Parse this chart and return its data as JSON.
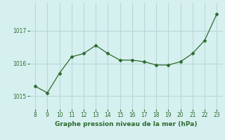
{
  "x": [
    8,
    9,
    10,
    11,
    12,
    13,
    14,
    15,
    16,
    17,
    18,
    19,
    20,
    21,
    22,
    23
  ],
  "y": [
    1015.3,
    1015.1,
    1015.7,
    1016.2,
    1016.3,
    1016.55,
    1016.3,
    1016.1,
    1016.1,
    1016.05,
    1015.95,
    1015.95,
    1016.05,
    1016.3,
    1016.7,
    1017.5
  ],
  "line_color": "#2d6a2d",
  "marker": "D",
  "marker_size": 2.5,
  "bg_color": "#d6f0f0",
  "grid_color": "#b8d8d8",
  "xlabel": "Graphe pression niveau de la mer (hPa)",
  "xlabel_color": "#2d6a2d",
  "tick_color": "#2d6a2d",
  "yticks": [
    1015,
    1016,
    1017
  ],
  "xticks": [
    8,
    9,
    10,
    11,
    12,
    13,
    14,
    15,
    16,
    17,
    18,
    19,
    20,
    21,
    22,
    23
  ],
  "ylim": [
    1014.6,
    1017.85
  ],
  "xlim": [
    7.5,
    23.5
  ]
}
